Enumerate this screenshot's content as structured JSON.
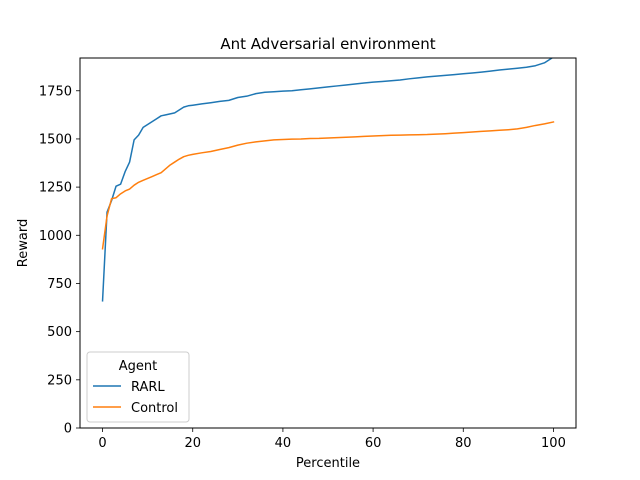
{
  "chart_data": {
    "type": "line",
    "title": "Ant Adversarial environment",
    "xlabel": "Percentile",
    "ylabel": "Reward",
    "xlim": [
      -5,
      105
    ],
    "ylim": [
      0,
      1920
    ],
    "xticks": [
      0,
      20,
      40,
      60,
      80,
      100
    ],
    "yticks": [
      0,
      250,
      500,
      750,
      1000,
      1250,
      1500,
      1750
    ],
    "grid": false,
    "legend": {
      "title": "Agent",
      "position": "lower-left"
    },
    "x": [
      0,
      1,
      2,
      3,
      4,
      5,
      6,
      7,
      8,
      9,
      10,
      11,
      12,
      13,
      14,
      15,
      16,
      17,
      18,
      19,
      20,
      22,
      24,
      26,
      28,
      30,
      32,
      34,
      36,
      38,
      40,
      42,
      44,
      46,
      48,
      50,
      52,
      54,
      56,
      58,
      60,
      62,
      64,
      66,
      68,
      70,
      72,
      74,
      76,
      78,
      80,
      82,
      84,
      86,
      88,
      90,
      92,
      94,
      96,
      98,
      100
    ],
    "series": [
      {
        "name": "RARL",
        "color": "#1f77b4",
        "values": [
          660,
          1120,
          1180,
          1255,
          1265,
          1330,
          1380,
          1495,
          1520,
          1560,
          1575,
          1590,
          1605,
          1620,
          1625,
          1630,
          1635,
          1650,
          1665,
          1672,
          1675,
          1682,
          1688,
          1695,
          1700,
          1715,
          1722,
          1735,
          1742,
          1745,
          1748,
          1750,
          1755,
          1760,
          1765,
          1770,
          1775,
          1780,
          1785,
          1790,
          1795,
          1798,
          1802,
          1806,
          1812,
          1817,
          1822,
          1826,
          1830,
          1834,
          1838,
          1842,
          1847,
          1852,
          1858,
          1862,
          1867,
          1872,
          1880,
          1895,
          1925
        ]
      },
      {
        "name": "Control",
        "color": "#ff7f0e",
        "values": [
          930,
          1100,
          1190,
          1195,
          1215,
          1230,
          1240,
          1260,
          1275,
          1285,
          1295,
          1305,
          1315,
          1325,
          1345,
          1365,
          1380,
          1395,
          1408,
          1415,
          1420,
          1428,
          1435,
          1445,
          1455,
          1468,
          1478,
          1485,
          1490,
          1495,
          1497,
          1499,
          1500,
          1502,
          1503,
          1505,
          1507,
          1509,
          1511,
          1513,
          1515,
          1517,
          1519,
          1520,
          1521,
          1522,
          1523,
          1525,
          1527,
          1530,
          1533,
          1536,
          1539,
          1542,
          1545,
          1548,
          1552,
          1560,
          1570,
          1578,
          1588
        ]
      }
    ]
  }
}
